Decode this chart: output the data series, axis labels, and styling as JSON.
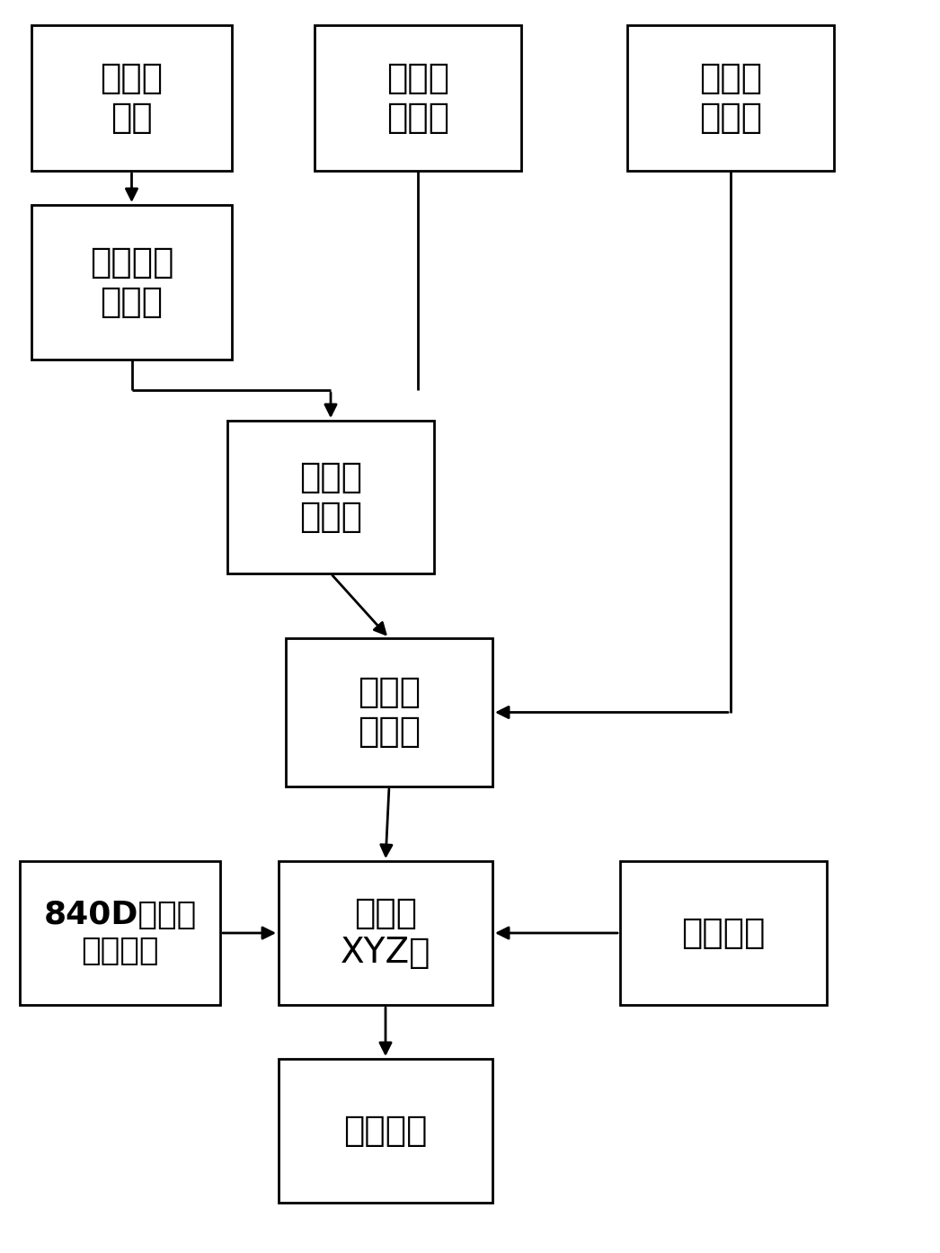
{
  "figsize": [
    10.46,
    13.94
  ],
  "dpi": 100,
  "bg_color": "#ffffff",
  "lw": 2.0,
  "boxes": [
    {
      "id": "wendu_sensor",
      "ix1": 35,
      "iy1": 28,
      "ix2": 258,
      "iy2": 190,
      "text": "温度传\n感器",
      "bold": false,
      "fs": 28
    },
    {
      "id": "celiang_error",
      "ix1": 350,
      "iy1": 28,
      "ix2": 580,
      "iy2": 190,
      "text": "测量误\n差数据",
      "bold": false,
      "fs": 28
    },
    {
      "id": "qici_coord",
      "ix1": 698,
      "iy1": 28,
      "ix2": 928,
      "iy2": 190,
      "text": "齐次坐\n标变换",
      "bold": false,
      "fs": 28
    },
    {
      "id": "wendu_data",
      "ix1": 35,
      "iy1": 228,
      "ix2": 258,
      "iy2": 400,
      "text": "温度数据\n采集卡",
      "bold": false,
      "fs": 28
    },
    {
      "id": "wucha_yuan",
      "ix1": 253,
      "iy1": 468,
      "ix2": 483,
      "iy2": 638,
      "text": "误差元\n素模型",
      "bold": false,
      "fs": 28
    },
    {
      "id": "kongjian",
      "ix1": 318,
      "iy1": 710,
      "ix2": 548,
      "iy2": 875,
      "text": "空间误\n差模型",
      "bold": false,
      "fs": 28
    },
    {
      "id": "d840",
      "ix1": 22,
      "iy1": 958,
      "ix2": 245,
      "iy2": 1118,
      "text": "840D热误差\n补偿功能",
      "bold": true,
      "fs": 26
    },
    {
      "id": "jieou",
      "ix1": 310,
      "iy1": 958,
      "ix2": 548,
      "iy2": 1118,
      "text": "解耦到\nXYZ轴",
      "bold": false,
      "fs": 28
    },
    {
      "id": "nihe",
      "ix1": 690,
      "iy1": 958,
      "ix2": 920,
      "iy2": 1118,
      "text": "拟合斜率",
      "bold": false,
      "fs": 28
    },
    {
      "id": "shixian",
      "ix1": 310,
      "iy1": 1178,
      "ix2": 548,
      "iy2": 1338,
      "text": "实现补偿",
      "bold": false,
      "fs": 28
    }
  ],
  "IW": 1046,
  "IH": 1394
}
